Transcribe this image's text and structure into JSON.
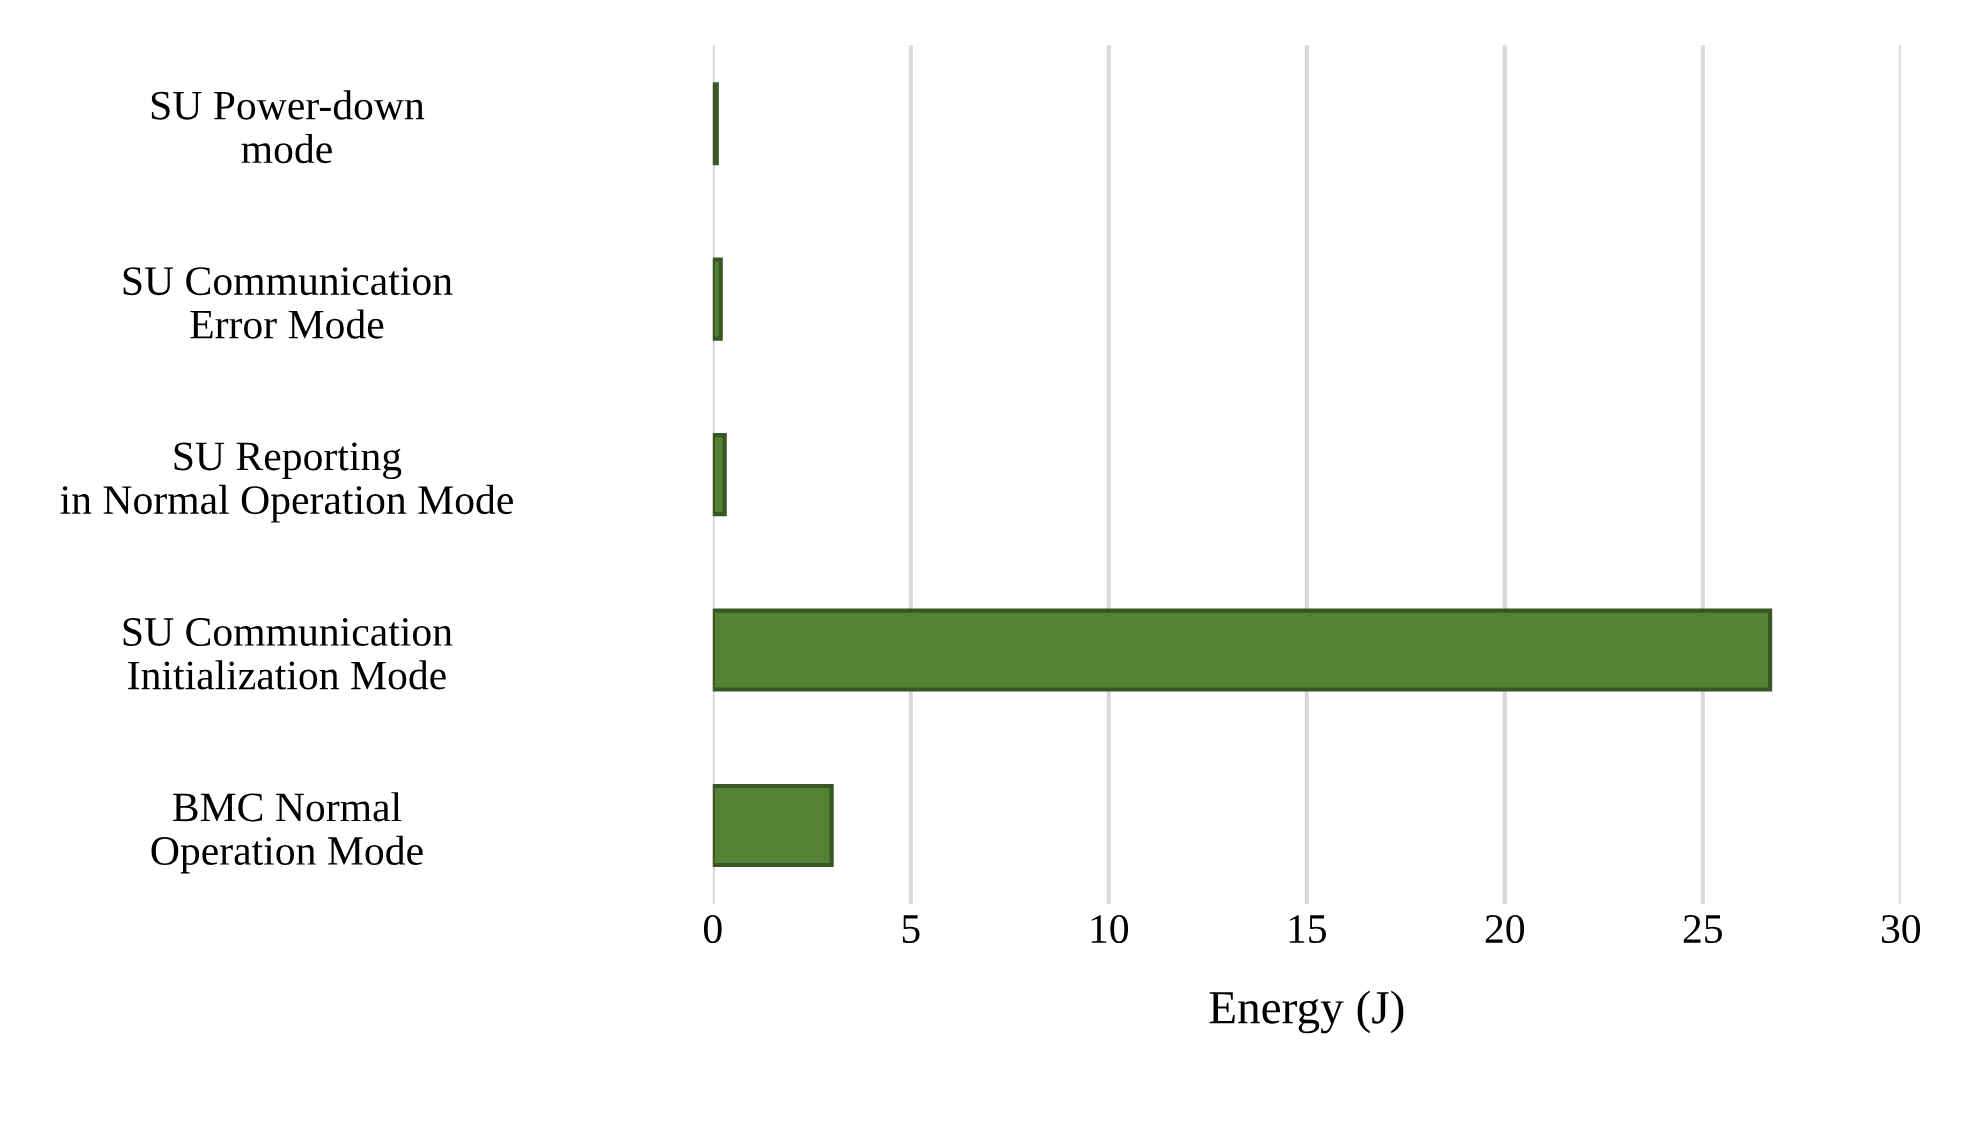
{
  "chart_data": {
    "type": "bar",
    "orientation": "horizontal",
    "xlabel": "Energy (J)",
    "categories": [
      "SU Power-down\nmode",
      "SU Communication\nError Mode",
      "SU Reporting\nin Normal Operation Mode",
      "SU Communication\nInitialization Mode",
      "BMC Normal\nOperation Mode"
    ],
    "values": [
      0.1,
      0.2,
      0.3,
      26.7,
      3.0
    ],
    "color": "#548235",
    "xlim": [
      0,
      30
    ],
    "xticks": [
      0,
      5,
      10,
      15,
      20,
      25,
      30
    ],
    "grid": "x",
    "legend": false
  }
}
